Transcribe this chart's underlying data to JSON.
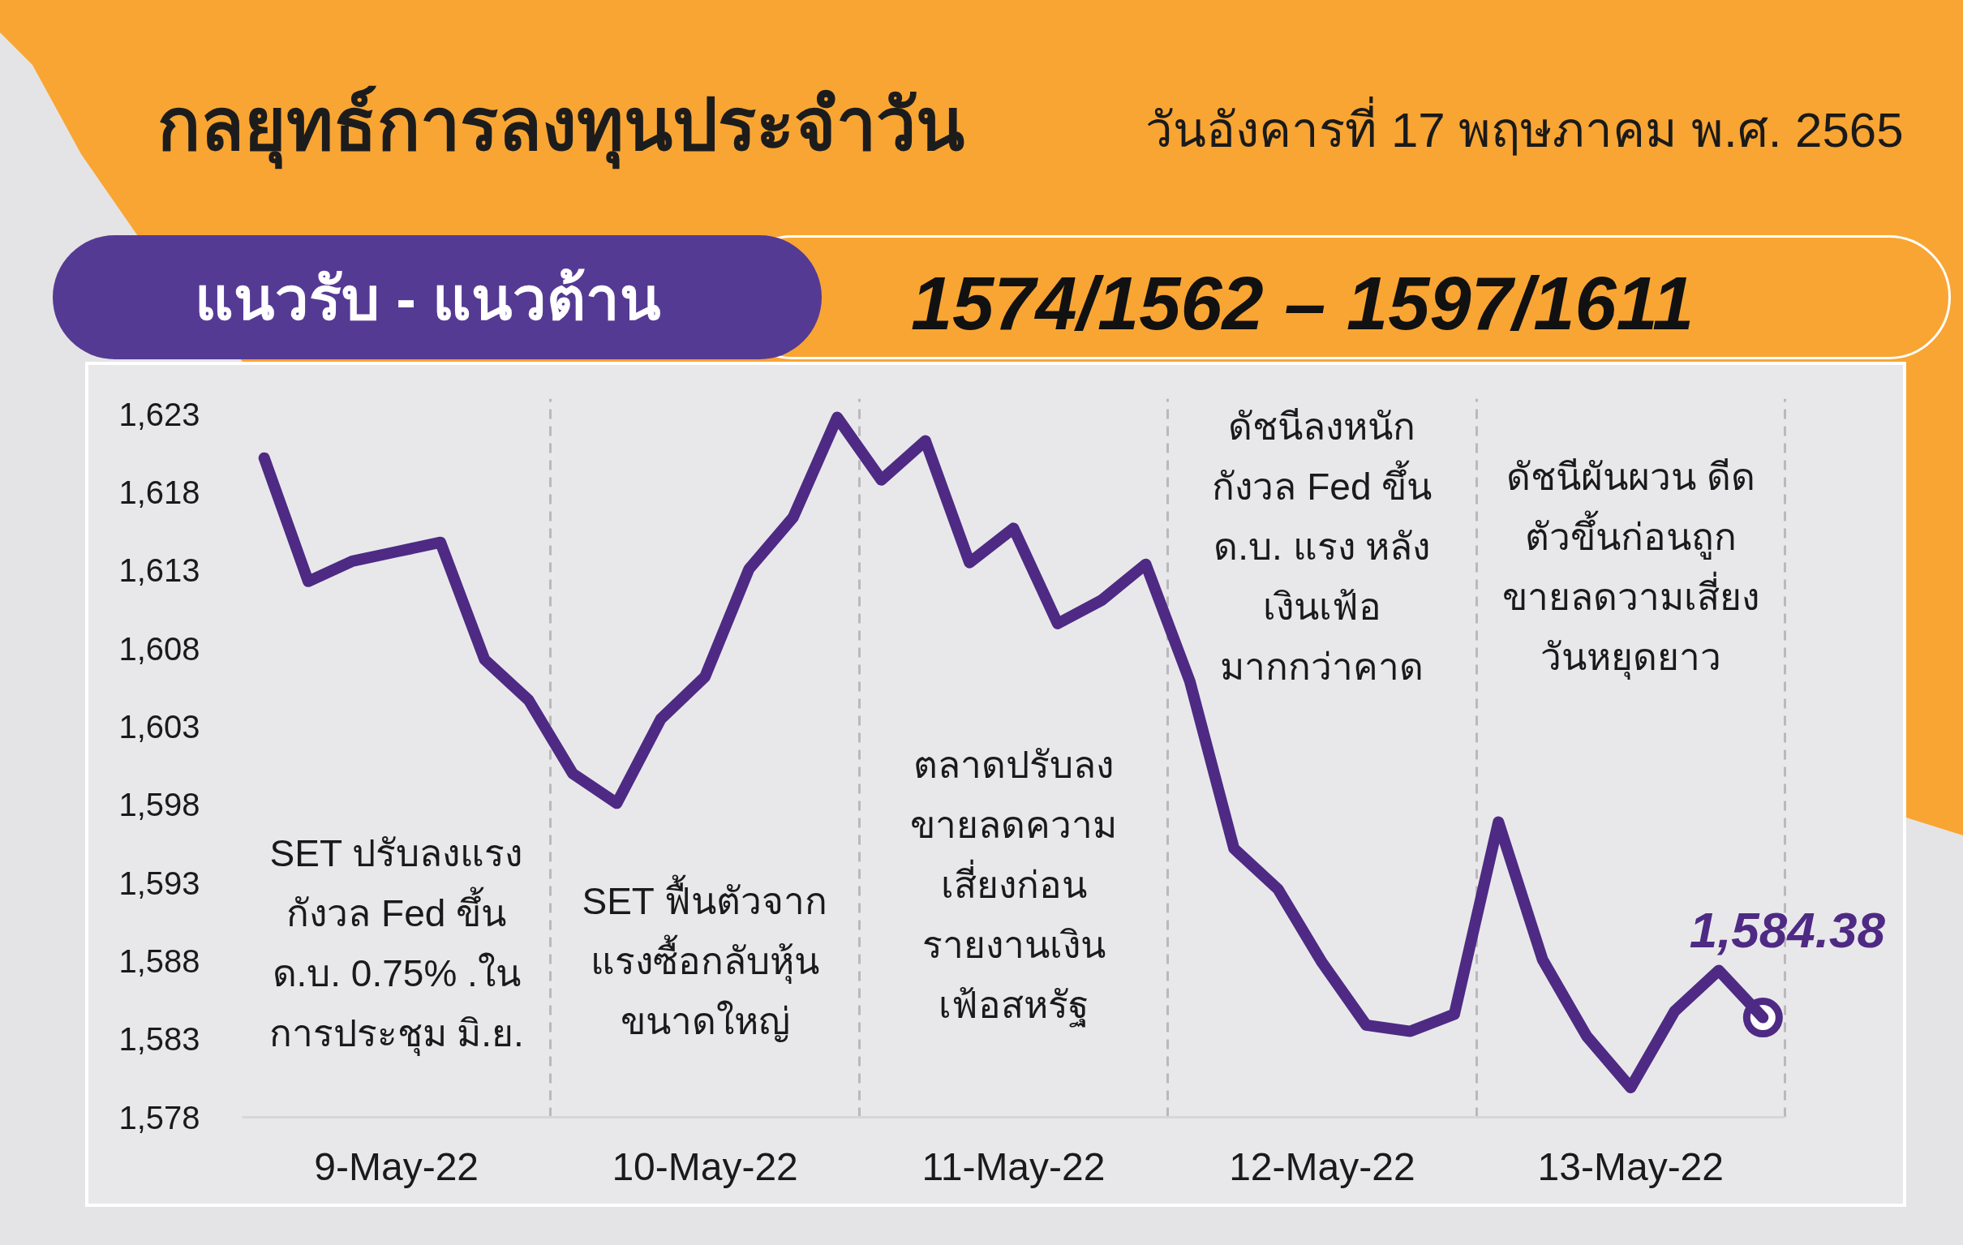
{
  "chart_data": {
    "type": "line",
    "title": "กลยุทธ์การลงทุนประจำวัน",
    "subtitle": "วันอังคารที่ 17 พฤษภาคม พ.ศ. 2565",
    "categories": [
      null,
      null,
      null,
      "9-May-22",
      null,
      null,
      null,
      null,
      null,
      null,
      "10-May-22",
      null,
      null,
      null,
      null,
      null,
      null,
      "11-May-22",
      null,
      null,
      null,
      null,
      null,
      null,
      "12-May-22",
      null,
      null,
      null,
      null,
      null,
      null,
      "13-May-22",
      null,
      null,
      null
    ],
    "series": [
      {
        "color": "#4e2a84",
        "values": [
          1620.2,
          1612.3,
          1613.6,
          1614.2,
          1614.8,
          1607.3,
          1604.7,
          1600.0,
          1598.1,
          1603.5,
          1606.2,
          1613.1,
          1616.4,
          1622.8,
          1618.8,
          1621.3,
          1613.5,
          1615.7,
          1609.6,
          1611.1,
          1613.4,
          1605.9,
          1595.2,
          1592.6,
          1587.9,
          1583.9,
          1583.5,
          1584.6,
          1596.9,
          1588.1,
          1583.2,
          1579.9,
          1584.8,
          1587.4,
          1584.38
        ],
        "value_labels": [
          null,
          null,
          null,
          null,
          null,
          null,
          null,
          null,
          null,
          null,
          null,
          null,
          null,
          null,
          null,
          null,
          null,
          null,
          null,
          null,
          null,
          null,
          null,
          null,
          null,
          null,
          null,
          null,
          null,
          null,
          null,
          null,
          null,
          null,
          "1,584.38"
        ]
      }
    ],
    "ylim": [
      1578,
      1624
    ],
    "yticks": [
      {
        "value": 1578,
        "label": "1,578"
      },
      {
        "value": 1583,
        "label": "1,583"
      },
      {
        "value": 1588,
        "label": "1,588"
      },
      {
        "value": 1593,
        "label": "1,593"
      },
      {
        "value": 1598,
        "label": "1,598"
      },
      {
        "value": 1603,
        "label": "1,603"
      },
      {
        "value": 1608,
        "label": "1,608"
      },
      {
        "value": 1613,
        "label": "1,613"
      },
      {
        "value": 1618,
        "label": "1,618"
      },
      {
        "value": 1623,
        "label": "1,623"
      }
    ],
    "grid": "x",
    "annotations": [
      "แนวรับ - แนวต้าน",
      "1574/1562 – 1597/1611",
      "SET ปรับลงแรง\nกังวล Fed ขึ้น\nด.บ. 0.75% .ใน\nการประชุม มิ.ย.",
      "SET ฟื้นตัวจาก\nแรงซื้อกลับหุ้น\nขนาดใหญ่",
      "ตลาดปรับลง\nขายลดความ\nเสี่ยงก่อน\nรายงานเงิน\nเฟ้อสหรัฐ",
      "ดัชนีลงหนัก\nกังวล Fed ขึ้น\nด.บ. แรง หลัง\nเงินเฟ้อ\nมากกว่าคาด",
      "ดัชนีผันผวน ดีด\nตัวขึ้นก่อนถูก\nขายลดวามเสี่ยง\nวันหยุดยาว"
    ]
  }
}
